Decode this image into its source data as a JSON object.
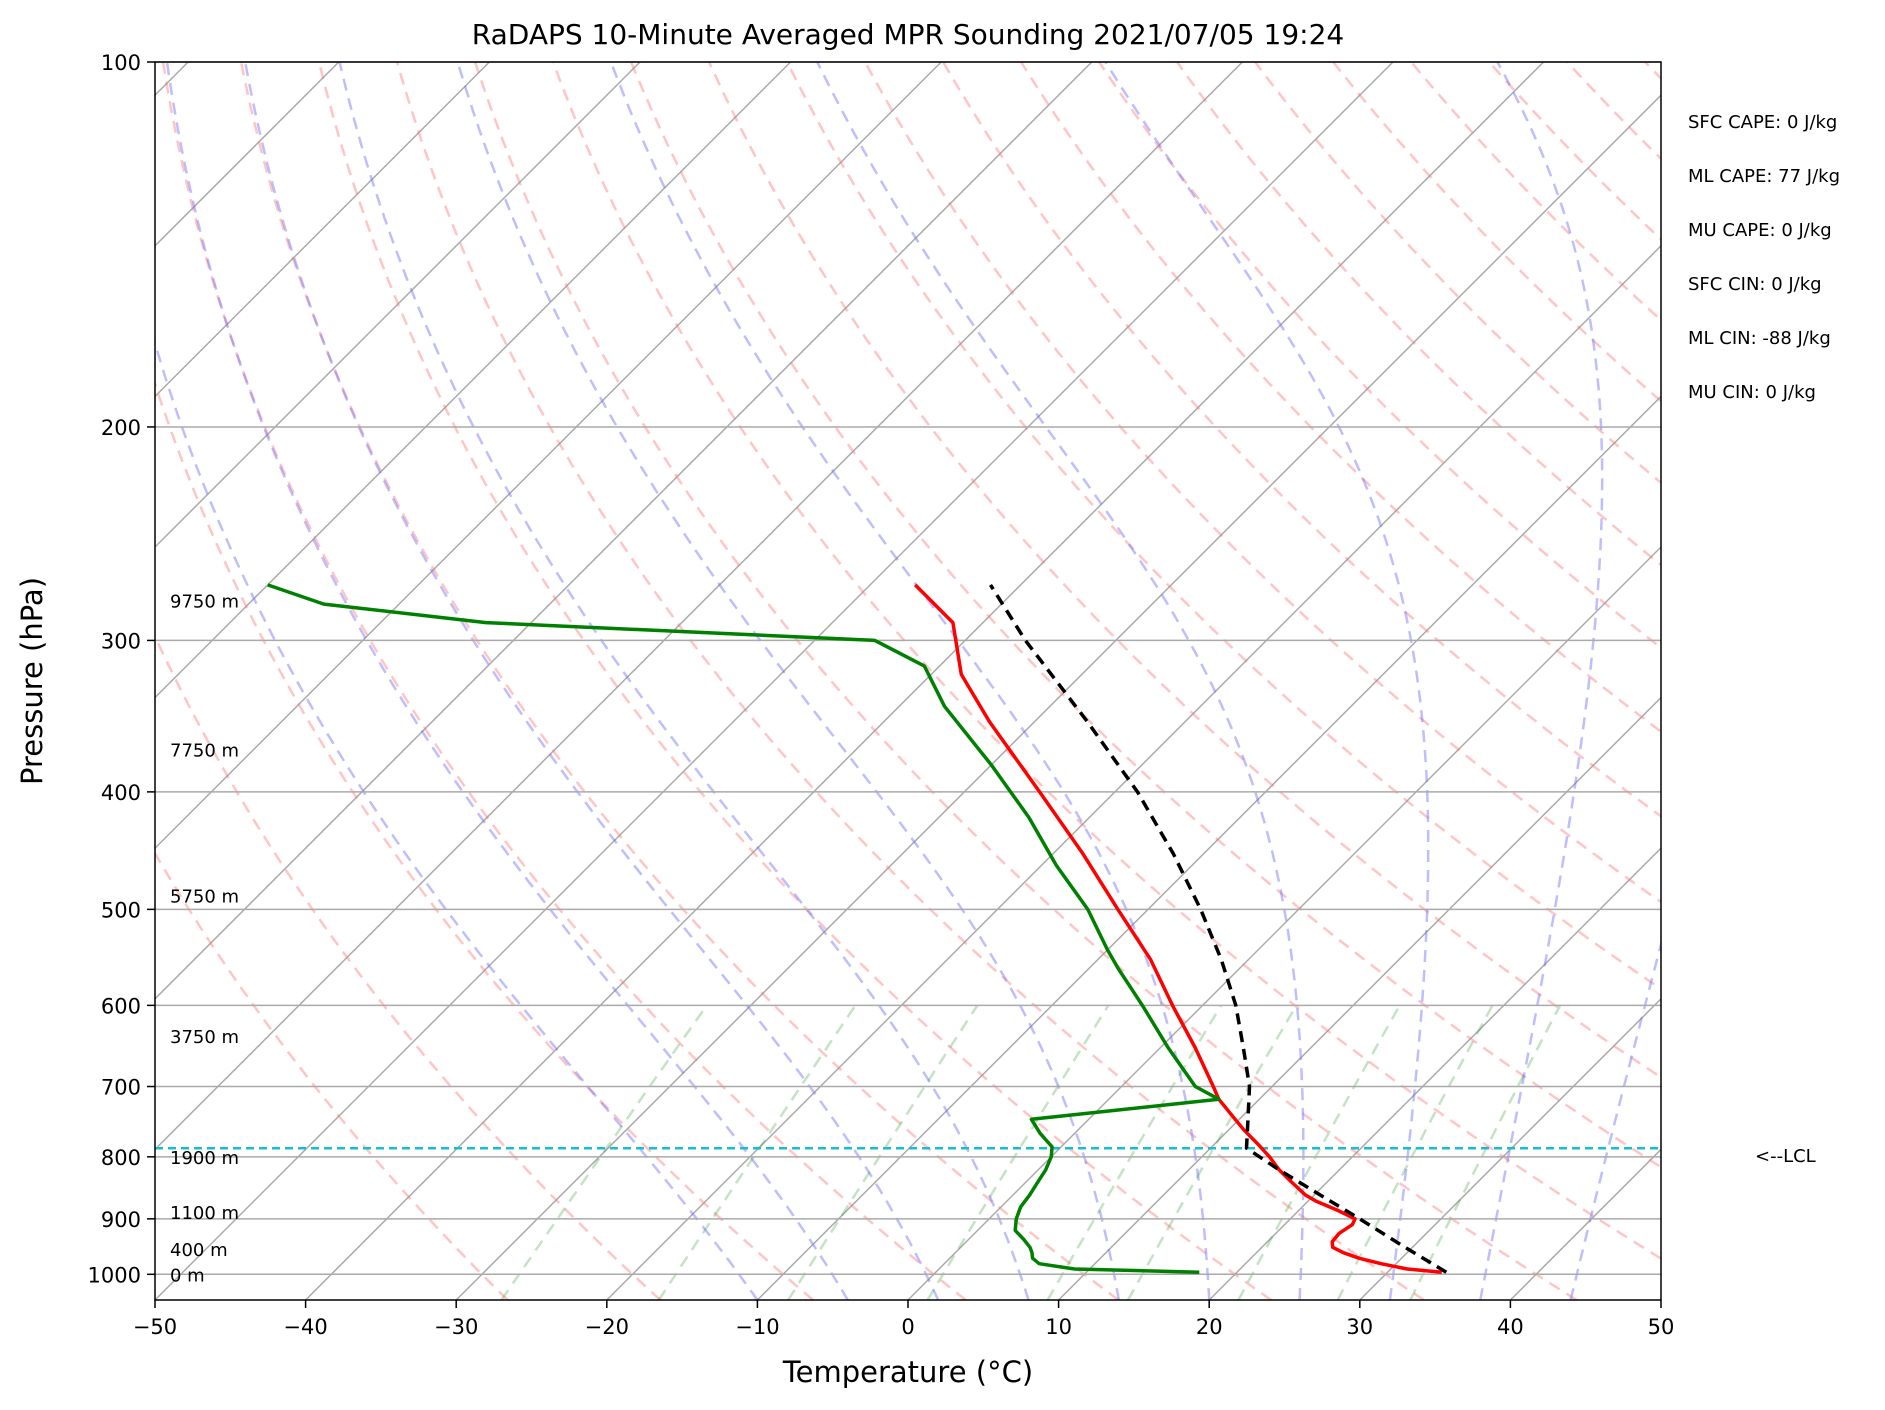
{
  "chart_data": {
    "type": "line",
    "title": "RaDAPS 10-Minute Averaged MPR Sounding 2021/07/05 19:24",
    "xlabel": "Temperature (°C)",
    "ylabel": "Pressure (hPa)",
    "xlim": [
      -50,
      50
    ],
    "ylim": [
      1050,
      100
    ],
    "y_scale": "log",
    "skew": "skew-T log-P",
    "grid": true,
    "x_ticks": [
      "−50",
      "−40",
      "−30",
      "−20",
      "−10",
      "0",
      "10",
      "20",
      "30",
      "40",
      "50"
    ],
    "y_ticks": [
      "100",
      "200",
      "300",
      "400",
      "500",
      "600",
      "700",
      "800",
      "900",
      "1000"
    ],
    "height_labels": [
      {
        "label": "0 m",
        "pressure": 1000
      },
      {
        "label": "400 m",
        "pressure": 953
      },
      {
        "label": "1100 m",
        "pressure": 888
      },
      {
        "label": "1900 m",
        "pressure": 800
      },
      {
        "label": "3750 m",
        "pressure": 636
      },
      {
        "label": "5750 m",
        "pressure": 487
      },
      {
        "label": "7750 m",
        "pressure": 369
      },
      {
        "label": "9750 m",
        "pressure": 278
      }
    ],
    "lcl": {
      "label": "<--LCL",
      "pressure": 787
    },
    "stats": [
      "SFC CAPE: 0 J/kg",
      "ML CAPE: 77 J/kg",
      "MU CAPE: 0 J/kg",
      "SFC CIN: 0 J/kg",
      "ML CIN: -88 J/kg",
      "MU CIN: 0 J/kg"
    ],
    "series": [
      {
        "kind": "temperature",
        "color": "#ff0000",
        "points": [
          {
            "p": 996,
            "t": 33.6
          },
          {
            "p": 990,
            "t": 31.1
          },
          {
            "p": 980,
            "t": 29.0
          },
          {
            "p": 970,
            "t": 27.2
          },
          {
            "p": 960,
            "t": 25.8
          },
          {
            "p": 950,
            "t": 24.7
          },
          {
            "p": 940,
            "t": 24.3
          },
          {
            "p": 925,
            "t": 24.2
          },
          {
            "p": 910,
            "t": 24.5
          },
          {
            "p": 900,
            "t": 24.3
          },
          {
            "p": 885,
            "t": 22.5
          },
          {
            "p": 870,
            "t": 20.5
          },
          {
            "p": 860,
            "t": 19.4
          },
          {
            "p": 840,
            "t": 17.7
          },
          {
            "p": 820,
            "t": 16.0
          },
          {
            "p": 800,
            "t": 14.5
          },
          {
            "p": 780,
            "t": 12.8
          },
          {
            "p": 760,
            "t": 11.0
          },
          {
            "p": 740,
            "t": 9.3
          },
          {
            "p": 717,
            "t": 7.3
          },
          {
            "p": 700,
            "t": 6.1
          },
          {
            "p": 650,
            "t": 2.3
          },
          {
            "p": 600,
            "t": -2.0
          },
          {
            "p": 550,
            "t": -6.5
          },
          {
            "p": 500,
            "t": -12.0
          },
          {
            "p": 450,
            "t": -18.0
          },
          {
            "p": 400,
            "t": -25.0
          },
          {
            "p": 350,
            "t": -33.0
          },
          {
            "p": 320,
            "t": -38.0
          },
          {
            "p": 290,
            "t": -42.0
          },
          {
            "p": 270,
            "t": -47.0
          }
        ]
      },
      {
        "kind": "dewpoint",
        "color": "#008000",
        "points": [
          {
            "p": 996,
            "t": 17.5
          },
          {
            "p": 990,
            "t": 9.0
          },
          {
            "p": 980,
            "t": 6.3
          },
          {
            "p": 970,
            "t": 5.5
          },
          {
            "p": 960,
            "t": 5.1
          },
          {
            "p": 950,
            "t": 4.6
          },
          {
            "p": 935,
            "t": 3.6
          },
          {
            "p": 920,
            "t": 2.5
          },
          {
            "p": 900,
            "t": 1.8
          },
          {
            "p": 880,
            "t": 1.3
          },
          {
            "p": 860,
            "t": 1.1
          },
          {
            "p": 840,
            "t": 0.8
          },
          {
            "p": 820,
            "t": 0.5
          },
          {
            "p": 800,
            "t": 0.0
          },
          {
            "p": 785,
            "t": -0.6
          },
          {
            "p": 765,
            "t": -2.3
          },
          {
            "p": 745,
            "t": -3.8
          },
          {
            "p": 717,
            "t": 7.3
          },
          {
            "p": 700,
            "t": 4.9
          },
          {
            "p": 650,
            "t": 0.5
          },
          {
            "p": 600,
            "t": -4.0
          },
          {
            "p": 560,
            "t": -8.0
          },
          {
            "p": 540,
            "t": -10.0
          },
          {
            "p": 500,
            "t": -14.0
          },
          {
            "p": 460,
            "t": -19.0
          },
          {
            "p": 420,
            "t": -24.0
          },
          {
            "p": 380,
            "t": -30.0
          },
          {
            "p": 340,
            "t": -37.0
          },
          {
            "p": 315,
            "t": -41.0
          },
          {
            "p": 300,
            "t": -46.0
          },
          {
            "p": 290,
            "t": -73.0
          },
          {
            "p": 280,
            "t": -85.0
          },
          {
            "p": 270,
            "t": -90.0
          }
        ]
      },
      {
        "kind": "parcel",
        "color": "#000000",
        "points": [
          {
            "p": 996,
            "t": 33.9
          },
          {
            "p": 950,
            "t": 29.5
          },
          {
            "p": 900,
            "t": 24.6
          },
          {
            "p": 850,
            "t": 19.3
          },
          {
            "p": 820,
            "t": 16.0
          },
          {
            "p": 787,
            "t": 12.4
          },
          {
            "p": 750,
            "t": 10.8
          },
          {
            "p": 700,
            "t": 8.5
          },
          {
            "p": 650,
            "t": 5.5
          },
          {
            "p": 600,
            "t": 2.2
          },
          {
            "p": 550,
            "t": -1.8
          },
          {
            "p": 500,
            "t": -6.5
          },
          {
            "p": 450,
            "t": -12.0
          },
          {
            "p": 400,
            "t": -18.5
          },
          {
            "p": 350,
            "t": -26.5
          },
          {
            "p": 300,
            "t": -36.0
          },
          {
            "p": 270,
            "t": -42.0
          }
        ]
      }
    ]
  }
}
